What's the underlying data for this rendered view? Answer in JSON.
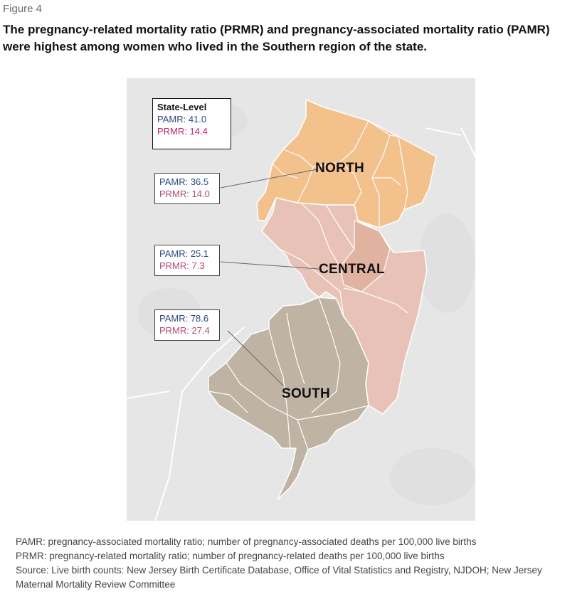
{
  "figure_label": "Figure 4",
  "title": "The pregnancy-related mortality ratio (PRMR) and pregnancy-associated mortality ratio (PAMR) were highest among women who lived in the Southern region of the state.",
  "state_box": {
    "heading": "State-Level",
    "pamr": "PAMR: 41.0",
    "prmr": "PRMR: 14.4"
  },
  "regions": {
    "north": {
      "label": "NORTH",
      "pamr": "PAMR: 36.5",
      "prmr": "PRMR: 14.0",
      "color": "#f2c18c"
    },
    "central": {
      "label": "CENTRAL",
      "pamr": "PAMR: 25.1",
      "prmr": "PRMR: 7.3",
      "color": "#e8c2b6"
    },
    "south": {
      "label": "SOUTH",
      "pamr": "PAMR: 78.6",
      "prmr": "PRMR: 27.4",
      "color": "#bfb3a4"
    }
  },
  "colors": {
    "background_map": "#e6e6e6",
    "pamr_text": "#2e4a7d",
    "prmr_text": "#c2246e"
  },
  "footnotes": [
    "PAMR: pregnancy-associated mortality ratio; number of pregnancy-associated deaths per 100,000 live births",
    "PRMR: pregnancy-related mortality ratio; number of pregnancy-related deaths per 100,000 live births",
    "Source: Live birth counts: New Jersey Birth Certificate Database, Office of Vital Statistics and Registry, NJDOH; New Jersey Maternal Mortality Review Committee"
  ]
}
